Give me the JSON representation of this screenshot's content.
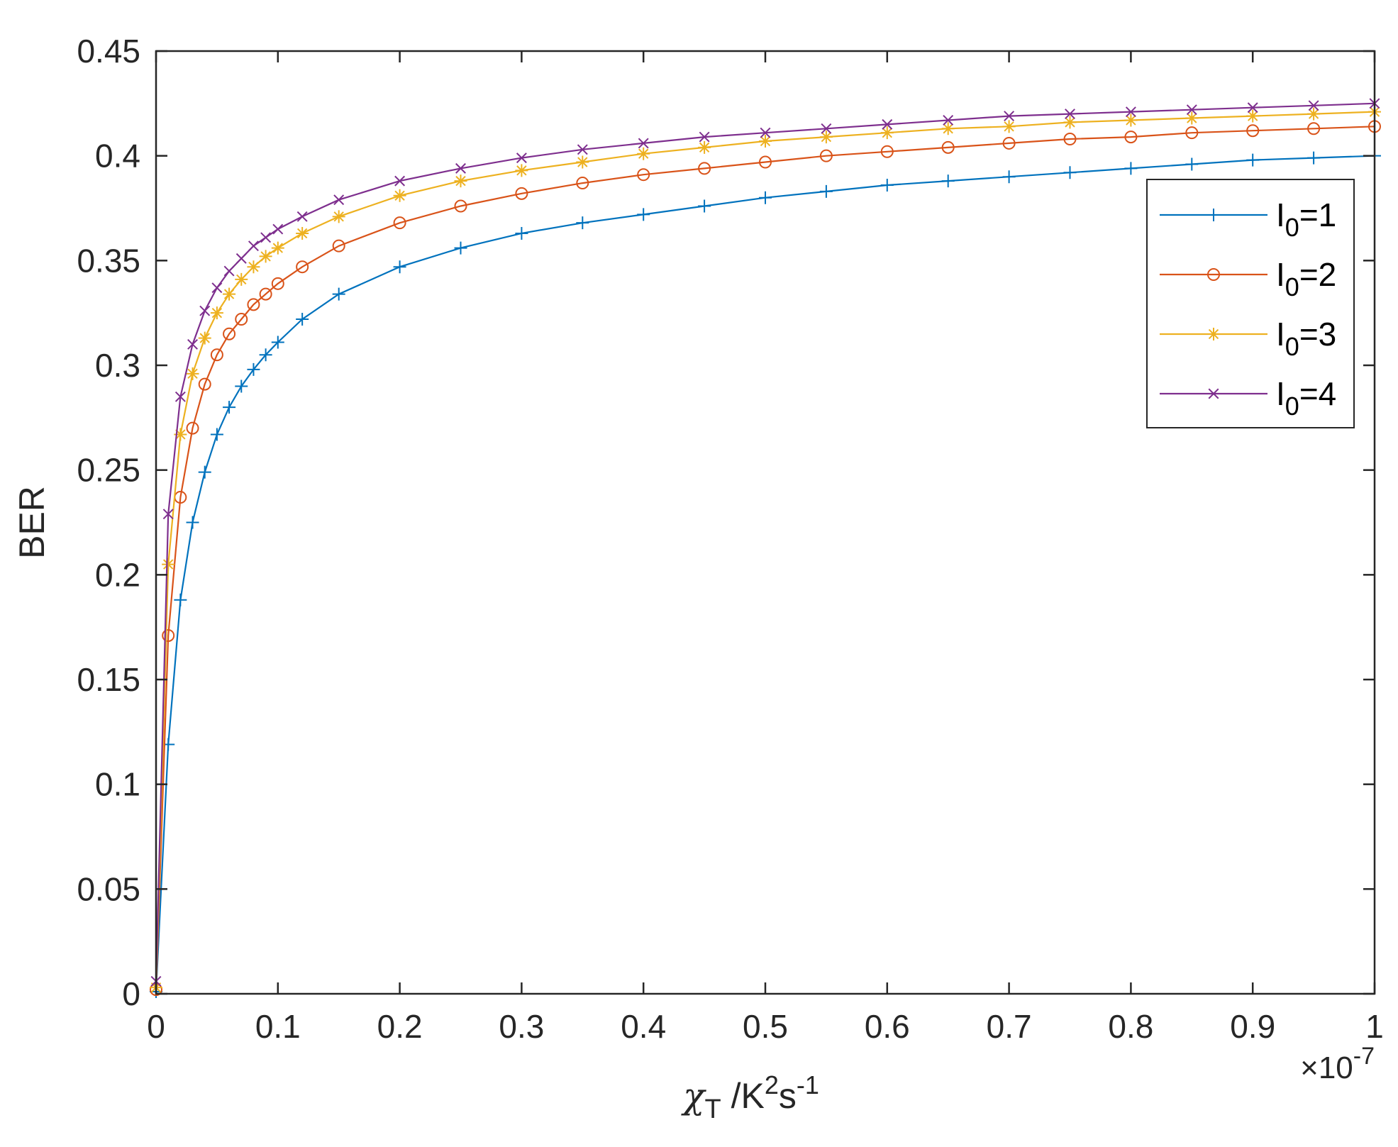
{
  "chart_data": {
    "type": "line",
    "ylabel": "BER",
    "xlabel": {
      "symbol": "χ",
      "symbol_sub": "T",
      "unit_main": " /K",
      "unit_sup1": "2",
      "unit_mid": "s",
      "unit_sup2": "-1"
    },
    "x_multiplier": {
      "prefix": "×10",
      "exponent": "-7"
    },
    "xlim": [
      0,
      1
    ],
    "ylim": [
      0,
      0.45
    ],
    "x_ticks": [
      "0",
      "0.1",
      "0.2",
      "0.3",
      "0.4",
      "0.5",
      "0.6",
      "0.7",
      "0.8",
      "0.9",
      "1"
    ],
    "y_ticks": [
      "0",
      "0.05",
      "0.1",
      "0.15",
      "0.2",
      "0.25",
      "0.3",
      "0.35",
      "0.4",
      "0.45"
    ],
    "grid": false,
    "legend_position": "top-right",
    "x": [
      0,
      0.01,
      0.02,
      0.03,
      0.04,
      0.05,
      0.06,
      0.07,
      0.08,
      0.09,
      0.1,
      0.12,
      0.15,
      0.2,
      0.25,
      0.3,
      0.35,
      0.4,
      0.45,
      0.5,
      0.55,
      0.6,
      0.65,
      0.7,
      0.75,
      0.8,
      0.85,
      0.9,
      0.95,
      1.0
    ],
    "series": [
      {
        "name_main": "I",
        "name_sub": "0",
        "name_rest": "=1",
        "color": "#0072BD",
        "marker": "plus",
        "values": [
          0.001,
          0.119,
          0.188,
          0.225,
          0.249,
          0.267,
          0.28,
          0.29,
          0.298,
          0.305,
          0.311,
          0.322,
          0.334,
          0.347,
          0.356,
          0.363,
          0.368,
          0.372,
          0.376,
          0.38,
          0.383,
          0.386,
          0.388,
          0.39,
          0.392,
          0.394,
          0.396,
          0.398,
          0.399,
          0.4
        ]
      },
      {
        "name_main": "I",
        "name_sub": "0",
        "name_rest": "=2",
        "color": "#D95319",
        "marker": "circle",
        "values": [
          0.002,
          0.171,
          0.237,
          0.27,
          0.291,
          0.305,
          0.315,
          0.322,
          0.329,
          0.334,
          0.339,
          0.347,
          0.357,
          0.368,
          0.376,
          0.382,
          0.387,
          0.391,
          0.394,
          0.397,
          0.4,
          0.402,
          0.404,
          0.406,
          0.408,
          0.409,
          0.411,
          0.412,
          0.413,
          0.414
        ]
      },
      {
        "name_main": "I",
        "name_sub": "0",
        "name_rest": "=3",
        "color": "#EDB120",
        "marker": "star",
        "values": [
          0.003,
          0.205,
          0.267,
          0.296,
          0.313,
          0.325,
          0.334,
          0.341,
          0.347,
          0.352,
          0.356,
          0.363,
          0.371,
          0.381,
          0.388,
          0.393,
          0.397,
          0.401,
          0.404,
          0.407,
          0.409,
          0.411,
          0.413,
          0.414,
          0.416,
          0.417,
          0.418,
          0.419,
          0.42,
          0.421
        ]
      },
      {
        "name_main": "I",
        "name_sub": "0",
        "name_rest": "=4",
        "color": "#7E2F8E",
        "marker": "x",
        "values": [
          0.006,
          0.229,
          0.285,
          0.31,
          0.326,
          0.337,
          0.345,
          0.351,
          0.357,
          0.361,
          0.365,
          0.371,
          0.379,
          0.388,
          0.394,
          0.399,
          0.403,
          0.406,
          0.409,
          0.411,
          0.413,
          0.415,
          0.417,
          0.419,
          0.42,
          0.421,
          0.422,
          0.423,
          0.424,
          0.425
        ]
      }
    ]
  }
}
